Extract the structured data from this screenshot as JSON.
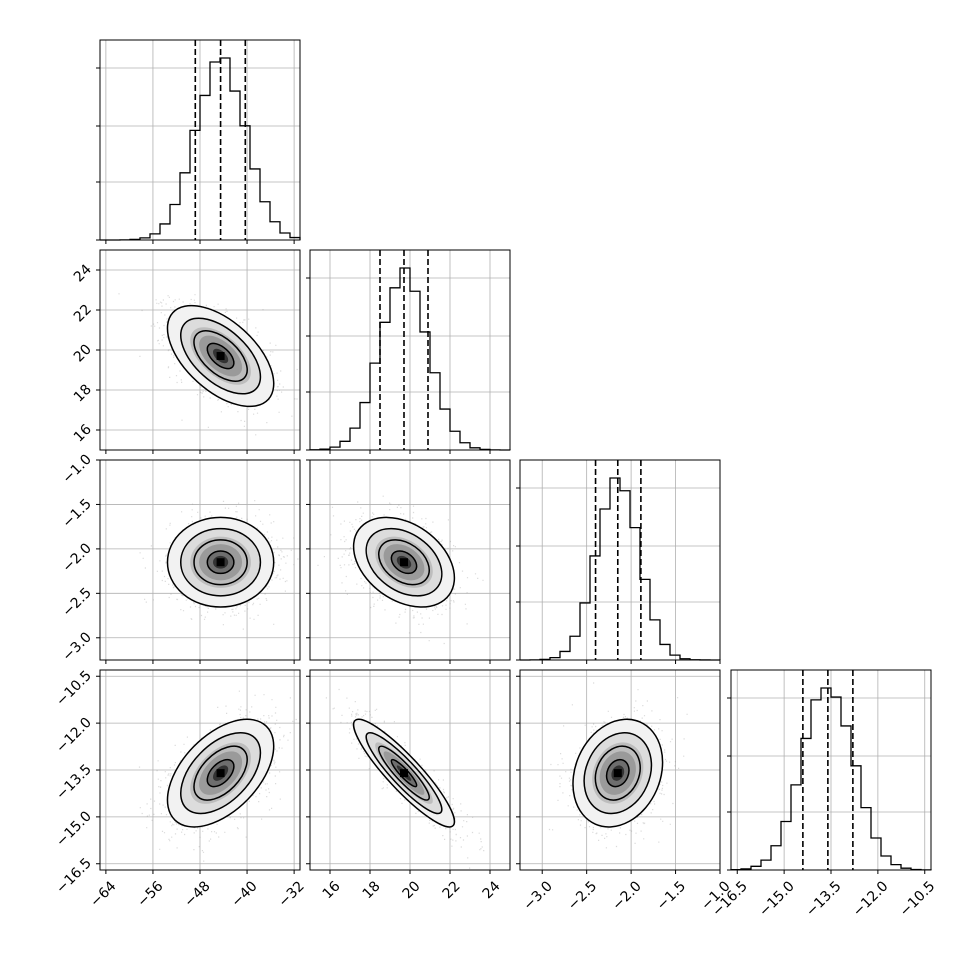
{
  "chart_data": {
    "type": "corner",
    "n_params": 4,
    "grid": true,
    "params": [
      {
        "range": [
          -65,
          -31
        ],
        "ticks": [
          -64,
          -56,
          -48,
          -40,
          -32
        ],
        "tick_labels": [
          "−64",
          "−56",
          "−48",
          "−40",
          "−32"
        ],
        "mean": -44.5,
        "sd": 4.3,
        "quantiles": [
          -48.8,
          -44.5,
          -40.3
        ]
      },
      {
        "range": [
          15,
          25
        ],
        "ticks": [
          16,
          18,
          20,
          22,
          24
        ],
        "tick_labels": [
          "16",
          "18",
          "20",
          "22",
          "24"
        ],
        "mean": 19.7,
        "sd": 1.2,
        "quantiles": [
          18.5,
          19.7,
          20.9
        ]
      },
      {
        "range": [
          -3.25,
          -1.0
        ],
        "ticks": [
          -3.0,
          -2.5,
          -2.0,
          -1.5,
          -1.0
        ],
        "tick_labels": [
          "−3.0",
          "−2.5",
          "−2.0",
          "−1.5",
          "−1.0"
        ],
        "mean": -2.15,
        "sd": 0.24,
        "quantiles": [
          -2.4,
          -2.15,
          -1.89
        ]
      },
      {
        "range": [
          -16.7,
          -10.3
        ],
        "ticks": [
          -16.5,
          -15.0,
          -13.5,
          -12.0,
          -10.5
        ],
        "tick_labels": [
          "−16.5",
          "−15.0",
          "−13.5",
          "−12.0",
          "−10.5"
        ],
        "mean": -13.6,
        "sd": 0.82,
        "quantiles": [
          -14.4,
          -13.6,
          -12.8
        ]
      }
    ],
    "correlations": [
      [
        1.0,
        -0.55,
        0.0,
        0.5
      ],
      [
        -0.55,
        1.0,
        -0.35,
        -0.9
      ],
      [
        0.0,
        -0.35,
        1.0,
        0.2
      ],
      [
        0.5,
        -0.9,
        0.2,
        1.0
      ]
    ],
    "contour_levels_sigma": [
      0.5,
      1.0,
      1.5,
      2.0
    ],
    "colors": {
      "line": "#000000",
      "grid": "#b0b0b0",
      "points": "#999999"
    }
  }
}
